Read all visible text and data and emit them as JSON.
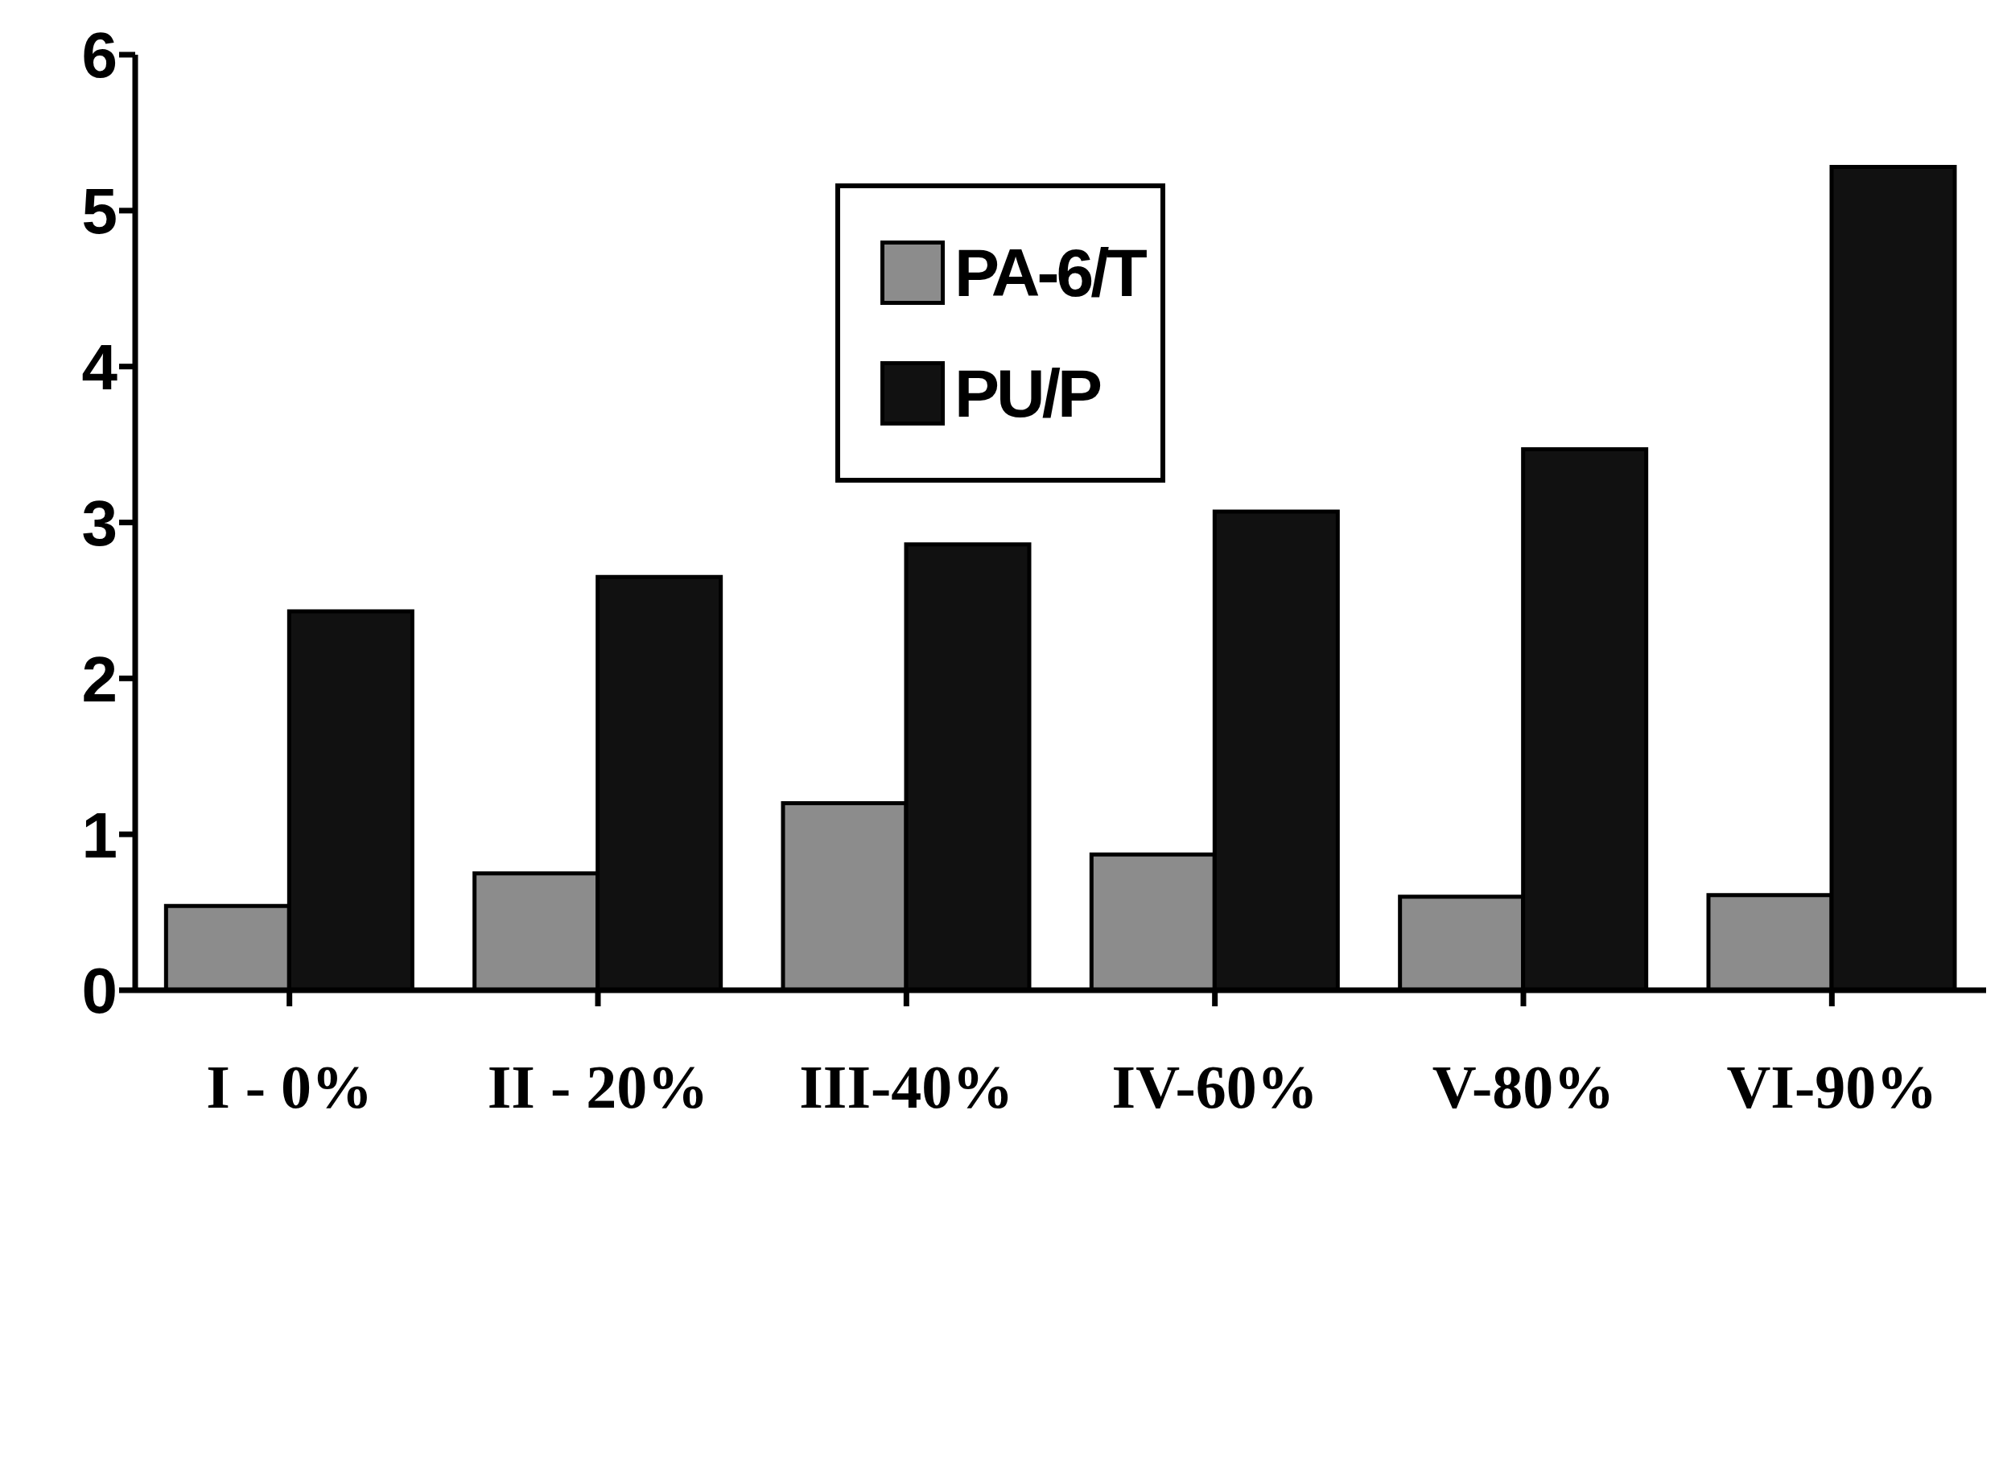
{
  "chart_data": {
    "type": "bar",
    "categories": [
      "I - 0%",
      "II - 20%",
      "III-40%",
      "IV-60%",
      "V-80%",
      "VI-90%"
    ],
    "series": [
      {
        "name": "PA-6/T",
        "color": "#8c8c8c",
        "values": [
          0.54,
          0.75,
          1.2,
          0.87,
          0.6,
          0.61
        ]
      },
      {
        "name": "PU/P",
        "color": "#111111",
        "values": [
          2.43,
          2.65,
          2.86,
          3.07,
          3.47,
          5.28
        ]
      }
    ],
    "ylim": [
      0,
      6
    ],
    "yticks": [
      0,
      1,
      2,
      3,
      4,
      5,
      6
    ],
    "grid": false,
    "legend": "top"
  }
}
